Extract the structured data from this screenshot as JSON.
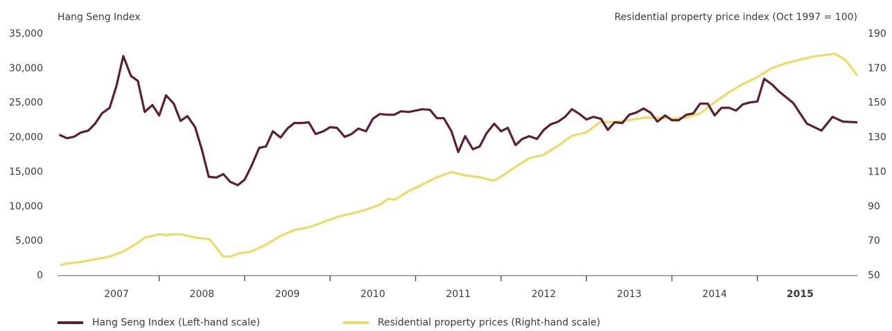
{
  "chart_data": {
    "type": "line",
    "y_axis_label": "Hang Seng Index",
    "y2_axis_label": "Residential property price index (Oct 1997 = 100)",
    "xlim": [
      2006.81,
      2016.17
    ],
    "xticks": [
      {
        "value": 2007.5,
        "label": "2007"
      },
      {
        "value": 2008.5,
        "label": "2008"
      },
      {
        "value": 2009.5,
        "label": "2009"
      },
      {
        "value": 2010.5,
        "label": "2010"
      },
      {
        "value": 2011.5,
        "label": "2011"
      },
      {
        "value": 2012.5,
        "label": "2012"
      },
      {
        "value": 2013.5,
        "label": "2013"
      },
      {
        "value": 2014.5,
        "label": "2014"
      },
      {
        "value": 2015.5,
        "label": "2015"
      }
    ],
    "ylim": [
      0,
      35000
    ],
    "yticks": [
      0,
      {
        "value": 5000,
        "label": "5,000"
      },
      {
        "value": 10000,
        "label": "10,000"
      },
      {
        "value": 15000,
        "label": "15,000"
      },
      {
        "value": 20000,
        "label": "20,000"
      },
      {
        "value": 25000,
        "label": "25,000"
      },
      {
        "value": 30000,
        "label": "30,000"
      },
      {
        "value": 35000,
        "label": "35,000"
      }
    ],
    "y2lim": [
      50,
      190
    ],
    "y2ticks": [
      50,
      70,
      90,
      110,
      130,
      150,
      170,
      190
    ],
    "grid": false,
    "legend": "bottom-left",
    "series": [
      {
        "name": "Hang Seng Index (Left-hand scale)",
        "color": "#5c1f30",
        "axis": "y",
        "x": [
          2006.83,
          2006.92,
          2007.0,
          2007.08,
          2007.17,
          2007.25,
          2007.33,
          2007.42,
          2007.5,
          2007.58,
          2007.67,
          2007.75,
          2007.83,
          2007.92,
          2008.0,
          2008.08,
          2008.17,
          2008.25,
          2008.33,
          2008.42,
          2008.5,
          2008.58,
          2008.67,
          2008.75,
          2008.83,
          2008.92,
          2009.0,
          2009.08,
          2009.17,
          2009.25,
          2009.33,
          2009.42,
          2009.5,
          2009.58,
          2009.67,
          2009.75,
          2009.83,
          2009.92,
          2010.0,
          2010.08,
          2010.17,
          2010.25,
          2010.33,
          2010.42,
          2010.5,
          2010.58,
          2010.67,
          2010.75,
          2010.83,
          2010.92,
          2011.0,
          2011.08,
          2011.17,
          2011.25,
          2011.33,
          2011.42,
          2011.5,
          2011.58,
          2011.67,
          2011.75,
          2011.83,
          2011.92,
          2012.0,
          2012.08,
          2012.17,
          2012.25,
          2012.33,
          2012.42,
          2012.5,
          2012.58,
          2012.67,
          2012.75,
          2012.83,
          2012.92,
          2013.0,
          2013.08,
          2013.17,
          2013.25,
          2013.33,
          2013.42,
          2013.5,
          2013.58,
          2013.67,
          2013.75,
          2013.83,
          2013.92,
          2014.0,
          2014.08,
          2014.17,
          2014.25,
          2014.33,
          2014.42,
          2014.5,
          2014.58,
          2014.67,
          2014.75,
          2014.83,
          2014.92,
          2015.0,
          2015.08,
          2015.17,
          2015.25,
          2015.42,
          2015.58,
          2015.75,
          2015.88,
          2016.0,
          2016.17
        ],
        "values": [
          20400,
          19900,
          20100,
          20700,
          21000,
          22000,
          23500,
          24300,
          27500,
          31800,
          28900,
          28200,
          23700,
          24700,
          23200,
          26100,
          24900,
          22400,
          23100,
          21500,
          18200,
          14300,
          14200,
          14700,
          13600,
          13100,
          13900,
          15900,
          18500,
          18700,
          20900,
          20000,
          21300,
          22100,
          22100,
          22200,
          20500,
          20900,
          21500,
          21400,
          20100,
          20500,
          21300,
          20900,
          22700,
          23400,
          23300,
          23300,
          23800,
          23700,
          23900,
          24100,
          24000,
          22800,
          22800,
          20900,
          17900,
          20200,
          18300,
          18700,
          20600,
          22000,
          20900,
          21400,
          18900,
          19800,
          20200,
          19800,
          21100,
          21900,
          22300,
          23000,
          24100,
          23400,
          22600,
          23000,
          22700,
          21100,
          22200,
          22100,
          23300,
          23600,
          24200,
          23600,
          22300,
          23200,
          22500,
          22500,
          23300,
          23500,
          24900,
          24900,
          23200,
          24300,
          24300,
          23900,
          24800,
          25100,
          25200,
          28500,
          27700,
          26700,
          25000,
          22000,
          21000,
          23000,
          22300,
          22200
        ]
      },
      {
        "name": "Residential property prices (Right-hand scale)",
        "color": "#e9dc68",
        "axis": "y2",
        "x": [
          2006.84,
          2006.92,
          2007.09,
          2007.25,
          2007.42,
          2007.58,
          2007.75,
          2007.83,
          2008.0,
          2008.09,
          2008.17,
          2008.25,
          2008.34,
          2008.42,
          2008.59,
          2008.75,
          2008.83,
          2008.91,
          2009.08,
          2009.25,
          2009.42,
          2009.59,
          2009.75,
          2009.92,
          2010.08,
          2010.25,
          2010.41,
          2010.58,
          2010.68,
          2010.76,
          2010.92,
          2011.09,
          2011.25,
          2011.42,
          2011.58,
          2011.75,
          2011.91,
          2011.99,
          2012.17,
          2012.33,
          2012.5,
          2012.66,
          2012.83,
          2013.0,
          2013.16,
          2013.33,
          2013.5,
          2013.67,
          2013.83,
          2014.0,
          2014.16,
          2014.33,
          2014.49,
          2014.66,
          2014.83,
          2015.0,
          2015.16,
          2015.33,
          2015.49,
          2015.66,
          2015.82,
          2015.91,
          2016.03,
          2016.17
        ],
        "values": [
          56,
          57,
          58,
          59.5,
          61,
          64,
          69,
          72,
          74,
          73.5,
          74,
          74,
          73,
          72,
          71,
          61,
          61,
          62.5,
          64,
          68,
          73,
          76.5,
          78,
          81,
          84,
          86,
          88,
          91,
          94.5,
          94,
          99,
          103,
          107,
          110,
          108,
          107,
          105,
          107,
          113,
          118,
          120,
          125,
          131,
          133,
          139,
          139,
          140,
          141.5,
          141.5,
          141,
          141.5,
          144,
          150,
          156,
          161,
          165,
          170,
          173,
          175,
          177,
          178,
          178.5,
          175,
          166
        ]
      }
    ]
  }
}
